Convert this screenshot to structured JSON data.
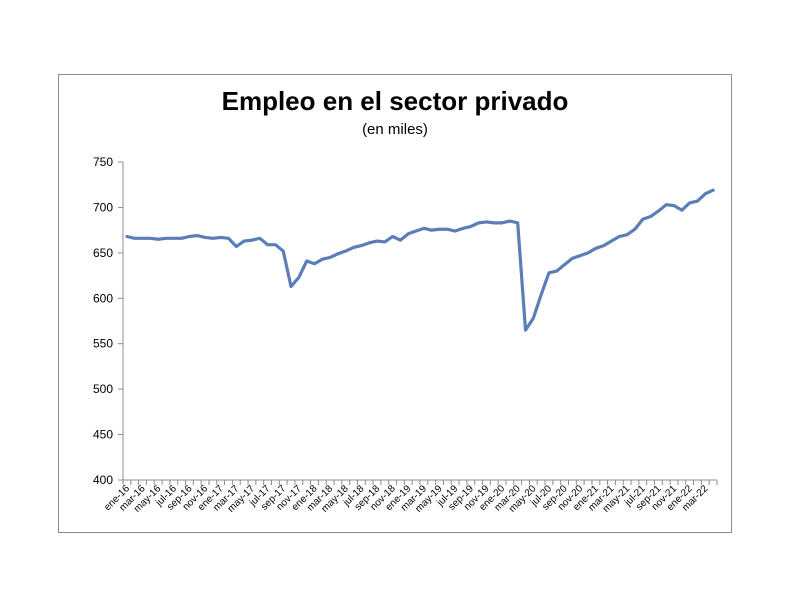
{
  "chart_data": {
    "type": "line",
    "title": "Empleo en el sector privado",
    "subtitle": "(en miles)",
    "xlabel": "",
    "ylabel": "",
    "ylim": [
      400,
      750
    ],
    "yticks": [
      400,
      450,
      500,
      550,
      600,
      650,
      700,
      750
    ],
    "grid": false,
    "legend": "none",
    "line_color": "#5b7db8",
    "x": [
      "ene-16",
      "feb-16",
      "mar-16",
      "abr-16",
      "may-16",
      "jun-16",
      "jul-16",
      "ago-16",
      "sep-16",
      "oct-16",
      "nov-16",
      "dic-16",
      "ene-17",
      "feb-17",
      "mar-17",
      "abr-17",
      "may-17",
      "jun-17",
      "jul-17",
      "ago-17",
      "sep-17",
      "oct-17",
      "nov-17",
      "dic-17",
      "ene-18",
      "feb-18",
      "mar-18",
      "abr-18",
      "may-18",
      "jun-18",
      "jul-18",
      "ago-18",
      "sep-18",
      "oct-18",
      "nov-18",
      "dic-18",
      "ene-19",
      "feb-19",
      "mar-19",
      "abr-19",
      "may-19",
      "jun-19",
      "jul-19",
      "ago-19",
      "sep-19",
      "oct-19",
      "nov-19",
      "dic-19",
      "ene-20",
      "feb-20",
      "mar-20",
      "abr-20",
      "may-20",
      "jun-20",
      "jul-20",
      "ago-20",
      "sep-20",
      "oct-20",
      "nov-20",
      "dic-20",
      "ene-21",
      "feb-21",
      "mar-21",
      "abr-21",
      "may-21",
      "jun-21",
      "jul-21",
      "ago-21",
      "sep-21",
      "oct-21",
      "nov-21",
      "dic-21",
      "ene-22",
      "feb-22",
      "mar-22",
      "abr-22"
    ],
    "xtick_labels": [
      "ene-16",
      "mar-16",
      "may-16",
      "jul-16",
      "sep-16",
      "nov-16",
      "ene-17",
      "mar-17",
      "may-17",
      "jul-17",
      "sep-17",
      "nov-17",
      "ene-18",
      "mar-18",
      "may-18",
      "jul-18",
      "sep-18",
      "nov-18",
      "ene-19",
      "mar-19",
      "may-19",
      "jul-19",
      "sep-19",
      "nov-19",
      "ene-20",
      "mar-20",
      "may-20",
      "jul-20",
      "sep-20",
      "nov-20",
      "ene-21",
      "mar-21",
      "may-21",
      "jul-21",
      "sep-21",
      "nov-21",
      "ene-22",
      "mar-22"
    ],
    "series": [
      {
        "values": [
          668,
          666,
          666,
          666,
          665,
          666,
          666,
          666,
          668,
          669,
          667,
          666,
          667,
          666,
          657,
          663,
          664,
          666,
          659,
          659,
          652,
          613,
          623,
          641,
          638,
          643,
          645,
          649,
          652,
          656,
          658,
          661,
          663,
          662,
          668,
          664,
          671,
          674,
          677,
          675,
          676,
          676,
          674,
          677,
          679,
          683,
          684,
          683,
          683,
          685,
          683,
          565,
          578,
          604,
          628,
          630,
          637,
          644,
          647,
          650,
          655,
          658,
          663,
          668,
          670,
          676,
          687,
          690,
          696,
          703,
          702,
          697,
          705,
          707,
          715,
          719
        ]
      }
    ]
  }
}
